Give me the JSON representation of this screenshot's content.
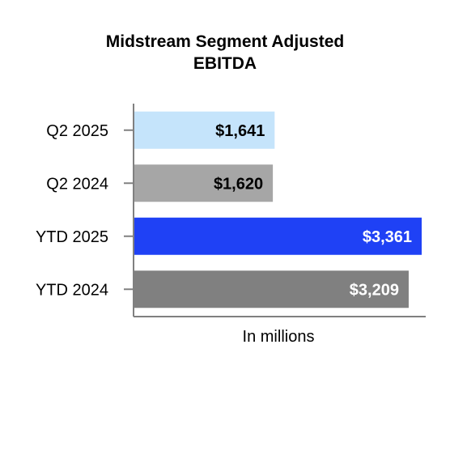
{
  "chart_data": {
    "type": "bar",
    "orientation": "horizontal",
    "title_line1": "Midstream Segment Adjusted",
    "title_line2": "EBITDA",
    "xlabel": "In millions",
    "ylabel": "",
    "categories": [
      "Q2 2025",
      "Q2 2024",
      "YTD 2025",
      "YTD 2024"
    ],
    "values": [
      1641,
      1620,
      3361,
      3209
    ],
    "value_labels": [
      "$1,641",
      "$1,620",
      "$3,361",
      "$3,209"
    ],
    "bar_colors": [
      "#c5e4fb",
      "#a6a6a6",
      "#1f41f5",
      "#808080"
    ],
    "label_colors": [
      "#000000",
      "#000000",
      "#ffffff",
      "#ffffff"
    ],
    "xlim": [
      0,
      3400
    ],
    "grid": false,
    "legend": "none"
  }
}
